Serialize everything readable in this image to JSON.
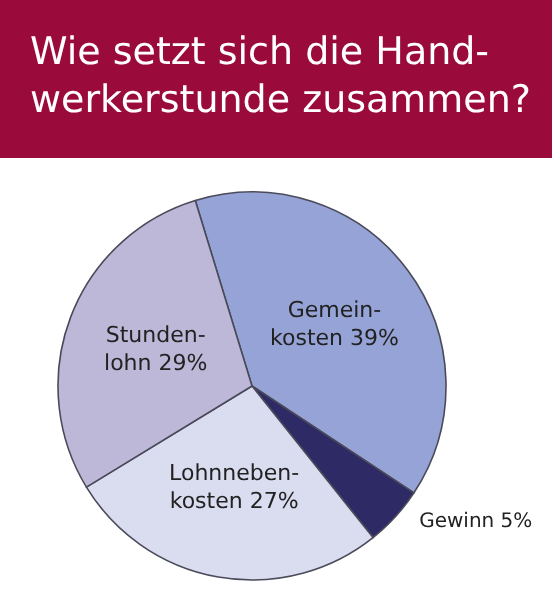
{
  "chart_data": {
    "type": "pie",
    "title": "Wie setzt sich die Hand-werkerstunde zusammen?",
    "categories": [
      "Gemein-kosten",
      "Gewinn",
      "Lohnneben-kosten",
      "Stunden-lohn"
    ],
    "values": [
      39,
      5,
      27,
      29
    ],
    "value_labels": [
      "39%",
      "5%",
      "27%",
      "29%"
    ],
    "colors": [
      "#95a3d6",
      "#2e2a66",
      "#dadcf0",
      "#bdb7d8"
    ],
    "legend": false
  }
}
